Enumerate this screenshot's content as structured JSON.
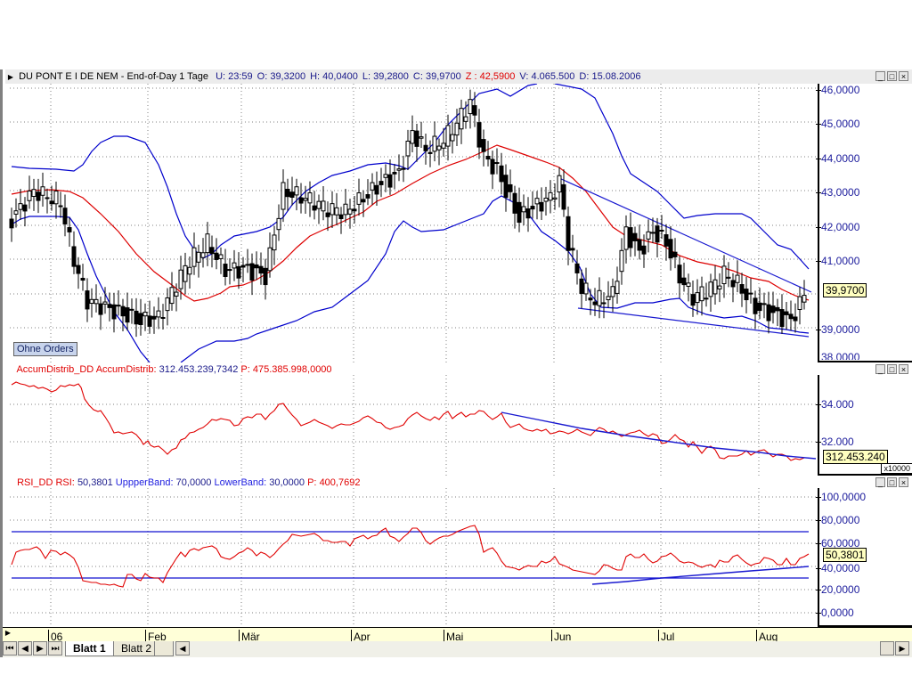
{
  "price_pane": {
    "title": "DU PONT E I DE NEM - End-of-Day 1 Tage",
    "fields": [
      {
        "label": "U:",
        "value": "23:59",
        "color": "navy"
      },
      {
        "label": "O:",
        "value": "39,3200",
        "color": "navy"
      },
      {
        "label": "H:",
        "value": "40,0400",
        "color": "navy"
      },
      {
        "label": "L:",
        "value": "39,2800",
        "color": "navy"
      },
      {
        "label": "C:",
        "value": "39,9700",
        "color": "navy"
      },
      {
        "label": "Z :",
        "value": "42,5900",
        "color": "red"
      },
      {
        "label": "V:",
        "value": "4.065.500",
        "color": "navy"
      },
      {
        "label": "D:",
        "value": "15.08.2006",
        "color": "navy"
      }
    ],
    "y_ticks": [
      "46,0000",
      "45,0000",
      "44,0000",
      "43,0000",
      "42,0000",
      "41,0000",
      "39,0000",
      "38,0000"
    ],
    "last_value": "39,9700",
    "ohne_orders_label": "Ohne Orders"
  },
  "accum_pane": {
    "name": "AccumDistrib_DD",
    "label": "AccumDistrib:",
    "value": "312.453.239,7342",
    "p_label": "P:",
    "p_value": "475.385.998,0000",
    "y_ticks": [
      "34.000",
      "32.000"
    ],
    "last_value": "312.453.240",
    "multiplier": "x10000"
  },
  "rsi_pane": {
    "name": "RSI_DD",
    "label": "RSI:",
    "value": "50,3801",
    "upper_label": "UppperBand:",
    "upper_value": "70,0000",
    "lower_label": "LowerBand:",
    "lower_value": "30,0000",
    "p_label": "P:",
    "p_value": "400,7692",
    "y_ticks": [
      "100,0000",
      "80,0000",
      "60,0000",
      "40,0000",
      "20,0000",
      "0,0000"
    ],
    "last_value": "50,3801"
  },
  "x_axis": {
    "labels": [
      "06",
      "Feb",
      "Mär",
      "Apr",
      "Mai",
      "Jun",
      "Jul",
      "Aug"
    ]
  },
  "sheet_tabs": {
    "tabs": [
      "Blatt 1",
      "Blatt 2"
    ],
    "active": 0
  },
  "window_buttons": {
    "minimize": "_",
    "maximize": "□",
    "close": "×"
  },
  "colors": {
    "candles": "#000000",
    "bollinger": "#0000cc",
    "moving_average": "#dd0000",
    "trendline": "#1a1ad0",
    "indicator_line": "#e00000",
    "axis_text": "#1c1c9c",
    "x_axis_bg": "#ffffd8"
  },
  "chart_data": [
    {
      "type": "candlestick",
      "title": "DU PONT E I DE NEM - End-of-Day 1 Tage",
      "x_labels": [
        "06",
        "Feb",
        "Mär",
        "Apr",
        "Mai",
        "Jun",
        "Jul",
        "Aug"
      ],
      "ylim": [
        38,
        46
      ],
      "y_ticks": [
        39,
        40,
        41,
        42,
        43,
        44,
        45,
        46
      ],
      "last_close": 39.97,
      "ohlc_last": {
        "open": 39.32,
        "high": 40.04,
        "low": 39.28,
        "close": 39.97
      },
      "approx_close_path": [
        {
          "x": "early Jan",
          "close": 42.0
        },
        {
          "x": "mid Jan",
          "close": 43.0
        },
        {
          "x": "late Jan",
          "close": 42.5
        },
        {
          "x": "end Jan",
          "close": 41.0
        },
        {
          "x": "early Feb",
          "close": 39.7
        },
        {
          "x": "mid Feb",
          "close": 39.2
        },
        {
          "x": "late Feb",
          "close": 40.5
        },
        {
          "x": "early Mär",
          "close": 40.6
        },
        {
          "x": "mid Mär",
          "close": 43.0
        },
        {
          "x": "late Mär",
          "close": 42.5
        },
        {
          "x": "early Apr",
          "close": 42.7
        },
        {
          "x": "mid Apr",
          "close": 44.7
        },
        {
          "x": "late Apr",
          "close": 44.0
        },
        {
          "x": "early Mai",
          "close": 45.6
        },
        {
          "x": "mid Mai",
          "close": 43.5
        },
        {
          "x": "late Mai",
          "close": 42.3
        },
        {
          "x": "early Jun",
          "close": 43.3
        },
        {
          "x": "mid Jun",
          "close": 40.2
        },
        {
          "x": "late Jun",
          "close": 41.5
        },
        {
          "x": "early Jul",
          "close": 41.9
        },
        {
          "x": "mid Jul",
          "close": 40.5
        },
        {
          "x": "late Jul",
          "close": 40.3
        },
        {
          "x": "early Aug",
          "close": 39.5
        },
        {
          "x": "mid Aug",
          "close": 39.97
        }
      ],
      "overlays": [
        "Bollinger Bands (blue)",
        "Moving Average (red)",
        "Descending trendlines (blue)"
      ]
    },
    {
      "type": "line",
      "title": "AccumDistrib_DD",
      "ylabel": "x10000",
      "y_ticks": [
        32000,
        34000
      ],
      "last_value": 31245.324,
      "series_shape": "starts ~35000 in Jan, drops to ~31600 in Feb, rises to ~34000 Mar-Mai, declines to ~31200 by Aug",
      "trendline": "descending from Mai (~33600) to Aug (~31300)"
    },
    {
      "type": "line",
      "title": "RSI_DD",
      "ylim": [
        0,
        100
      ],
      "y_ticks": [
        0,
        20,
        40,
        60,
        80,
        100
      ],
      "bands": {
        "upper": 70,
        "lower": 30
      },
      "last_value": 50.3801,
      "series_shape": "~55 in Jan, ~28 in late Jan/Feb, rises to ~70 in Apr/Mai, falls to ~25 in early Jun, oscillates 35-50 through Aug",
      "trendline": "ascending support from Jun (~25) to Aug (~37)"
    }
  ]
}
